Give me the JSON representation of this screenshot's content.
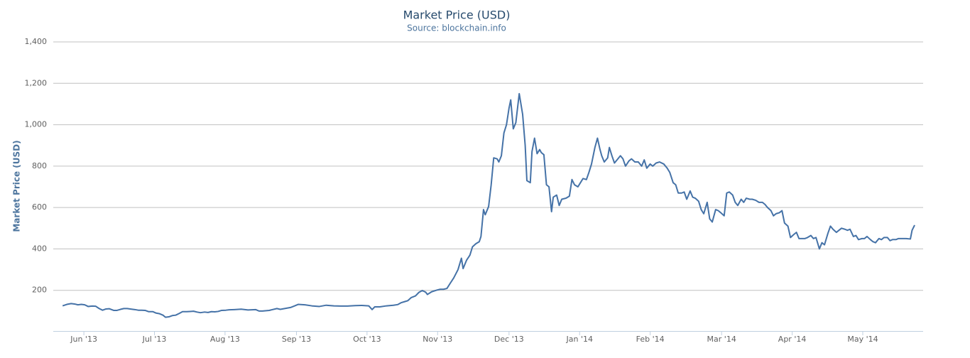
{
  "chart_data": {
    "type": "line",
    "title": "Market Price (USD)",
    "subtitle": "Source: blockchain.info",
    "y_label": "Market Price (USD)",
    "color": "#4572a7",
    "grid": true,
    "ylim": [
      0,
      1400
    ],
    "yticks": [
      200,
      400,
      600,
      800,
      {
        "value": 1000,
        "label": "1,000"
      },
      {
        "value": 1200,
        "label": "1,200"
      },
      {
        "value": 1400,
        "label": "1,400"
      }
    ],
    "xlim": [
      2013.381,
      2014.404
    ],
    "xticks": [
      {
        "value": 2013.417,
        "label": "Jun '13"
      },
      {
        "value": 2013.5,
        "label": "Jul '13"
      },
      {
        "value": 2013.583,
        "label": "Aug '13"
      },
      {
        "value": 2013.667,
        "label": "Sep '13"
      },
      {
        "value": 2013.75,
        "label": "Oct '13"
      },
      {
        "value": 2013.833,
        "label": "Nov '13"
      },
      {
        "value": 2013.917,
        "label": "Dec '13"
      },
      {
        "value": 2014.0,
        "label": "Jan '14"
      },
      {
        "value": 2014.083,
        "label": "Feb '14"
      },
      {
        "value": 2014.167,
        "label": "Mar '14"
      },
      {
        "value": 2014.25,
        "label": "Apr '14"
      },
      {
        "value": 2014.333,
        "label": "May '14"
      }
    ],
    "x": [
      2013.392,
      2013.397,
      2013.402,
      2013.406,
      2013.41,
      2013.414,
      2013.418,
      2013.422,
      2013.427,
      2013.431,
      2013.435,
      2013.439,
      2013.443,
      2013.447,
      2013.452,
      2013.456,
      2013.46,
      2013.464,
      2013.468,
      2013.473,
      2013.477,
      2013.481,
      2013.485,
      2013.489,
      2013.493,
      2013.498,
      2013.502,
      2013.506,
      2013.51,
      2013.513,
      2013.517,
      2013.521,
      2013.525,
      2013.529,
      2013.533,
      2013.538,
      2013.542,
      2013.546,
      2013.55,
      2013.554,
      2013.559,
      2013.563,
      2013.567,
      2013.571,
      2013.575,
      2013.579,
      2013.584,
      2013.588,
      2013.594,
      2013.602,
      2013.61,
      2013.619,
      2013.623,
      2013.627,
      2013.635,
      2013.644,
      2013.648,
      2013.652,
      2013.66,
      2013.665,
      2013.669,
      2013.677,
      2013.685,
      2013.694,
      2013.702,
      2013.711,
      2013.719,
      2013.727,
      2013.736,
      2013.744,
      2013.752,
      2013.756,
      2013.759,
      2013.765,
      2013.773,
      2013.781,
      2013.786,
      2013.79,
      2013.794,
      2013.798,
      2013.802,
      2013.807,
      2013.811,
      2013.815,
      2013.819,
      2013.821,
      2013.826,
      2013.832,
      2013.836,
      2013.84,
      2013.844,
      2013.848,
      2013.852,
      2013.857,
      2013.861,
      2013.863,
      2013.867,
      2013.871,
      2013.874,
      2013.878,
      2013.882,
      2013.884,
      2013.887,
      2013.889,
      2013.893,
      2013.896,
      2013.899,
      2013.903,
      2013.905,
      2013.908,
      2013.911,
      2013.914,
      2013.917,
      2013.919,
      2013.922,
      2013.925,
      2013.929,
      2013.933,
      2013.936,
      2013.938,
      2013.942,
      2013.944,
      2013.947,
      2013.95,
      2013.953,
      2013.955,
      2013.958,
      2013.961,
      2013.964,
      2013.967,
      2013.969,
      2013.973,
      2013.976,
      2013.979,
      2013.984,
      2013.988,
      2013.991,
      2013.994,
      2013.998,
      2014.001,
      2014.004,
      2014.008,
      2014.011,
      2014.014,
      2014.018,
      2014.021,
      2014.024,
      2014.026,
      2014.029,
      2014.033,
      2014.035,
      2014.038,
      2014.041,
      2014.044,
      2014.048,
      2014.051,
      2014.054,
      2014.058,
      2014.061,
      2014.065,
      2014.069,
      2014.073,
      2014.076,
      2014.079,
      2014.083,
      2014.086,
      2014.09,
      2014.094,
      2014.099,
      2014.103,
      2014.106,
      2014.11,
      2014.113,
      2014.116,
      2014.12,
      2014.123,
      2014.126,
      2014.13,
      2014.133,
      2014.136,
      2014.14,
      2014.143,
      2014.146,
      2014.15,
      2014.153,
      2014.156,
      2014.16,
      2014.163,
      2014.166,
      2014.17,
      2014.173,
      2014.176,
      2014.18,
      2014.183,
      2014.186,
      2014.19,
      2014.193,
      2014.196,
      2014.2,
      2014.203,
      2014.207,
      2014.211,
      2014.215,
      2014.218,
      2014.221,
      2014.225,
      2014.228,
      2014.231,
      2014.235,
      2014.238,
      2014.241,
      2014.245,
      2014.248,
      2014.252,
      2014.255,
      2014.258,
      2014.262,
      2014.265,
      2014.268,
      2014.272,
      2014.275,
      2014.278,
      2014.282,
      2014.285,
      2014.288,
      2014.292,
      2014.295,
      2014.298,
      2014.302,
      2014.305,
      2014.308,
      2014.312,
      2014.315,
      2014.318,
      2014.322,
      2014.325,
      2014.328,
      2014.332,
      2014.335,
      2014.338,
      2014.342,
      2014.345,
      2014.348,
      2014.352,
      2014.355,
      2014.358,
      2014.362,
      2014.365,
      2014.368,
      2014.372,
      2014.375,
      2014.378,
      2014.384,
      2014.389,
      2014.391,
      2014.394
    ],
    "values": [
      125,
      132,
      136,
      134,
      130,
      132,
      130,
      122,
      124,
      123,
      112,
      104,
      110,
      111,
      103,
      103,
      108,
      112,
      112,
      109,
      107,
      104,
      104,
      103,
      97,
      97,
      90,
      87,
      80,
      70,
      72,
      78,
      80,
      88,
      97,
      97,
      98,
      99,
      95,
      92,
      95,
      93,
      97,
      96,
      98,
      103,
      104,
      106,
      107,
      109,
      105,
      107,
      100,
      100,
      103,
      112,
      108,
      111,
      117,
      125,
      132,
      130,
      125,
      122,
      128,
      125,
      124,
      124,
      126,
      127,
      125,
      107,
      120,
      120,
      125,
      128,
      131,
      140,
      145,
      150,
      165,
      173,
      190,
      199,
      191,
      180,
      193,
      201,
      205,
      205,
      209,
      235,
      260,
      300,
      355,
      305,
      345,
      370,
      410,
      425,
      435,
      460,
      590,
      565,
      605,
      710,
      840,
      835,
      820,
      850,
      960,
      1000,
      1080,
      1120,
      980,
      1010,
      1150,
      1050,
      900,
      730,
      720,
      870,
      935,
      860,
      880,
      865,
      855,
      710,
      700,
      580,
      650,
      660,
      610,
      640,
      645,
      655,
      735,
      710,
      700,
      720,
      740,
      735,
      770,
      810,
      890,
      935,
      880,
      850,
      820,
      840,
      890,
      850,
      815,
      830,
      850,
      835,
      800,
      825,
      835,
      820,
      820,
      800,
      830,
      790,
      810,
      800,
      815,
      820,
      810,
      790,
      770,
      720,
      710,
      670,
      670,
      675,
      640,
      680,
      650,
      645,
      630,
      590,
      570,
      625,
      545,
      530,
      590,
      585,
      575,
      560,
      670,
      675,
      660,
      625,
      610,
      640,
      625,
      645,
      640,
      640,
      635,
      625,
      625,
      615,
      600,
      585,
      560,
      570,
      575,
      585,
      525,
      510,
      455,
      470,
      480,
      450,
      450,
      450,
      455,
      465,
      450,
      455,
      400,
      430,
      420,
      475,
      510,
      495,
      480,
      490,
      500,
      495,
      490,
      495,
      460,
      465,
      445,
      450,
      450,
      460,
      445,
      435,
      430,
      450,
      445,
      455,
      455,
      440,
      445,
      445,
      450,
      450,
      450,
      448,
      490,
      515
    ]
  }
}
